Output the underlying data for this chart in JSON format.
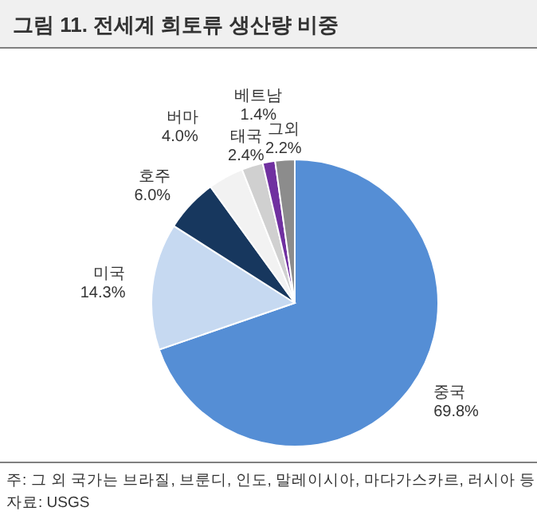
{
  "chart_data": {
    "type": "pie",
    "title": "그림 11.  전세계 희토류 생산량 비중",
    "categories": [
      "중국",
      "미국",
      "호주",
      "버마",
      "태국",
      "베트남",
      "그외"
    ],
    "values": [
      69.8,
      14.3,
      6.0,
      4.0,
      2.4,
      1.4,
      2.2
    ],
    "value_labels": [
      "69.8%",
      "14.3%",
      "6.0%",
      "4.0%",
      "2.4%",
      "1.4%",
      "2.2%"
    ],
    "colors": [
      "#558ed5",
      "#c6d9f1",
      "#17375e",
      "#f2f2f2",
      "#d0d0d0",
      "#7030a0",
      "#8c8c8c"
    ],
    "annotations": [
      "주: 그 외 국가는 브라질, 브룬디, 인도, 말레이시아, 마다가스카르, 러시아 등",
      "자료: USGS"
    ]
  }
}
